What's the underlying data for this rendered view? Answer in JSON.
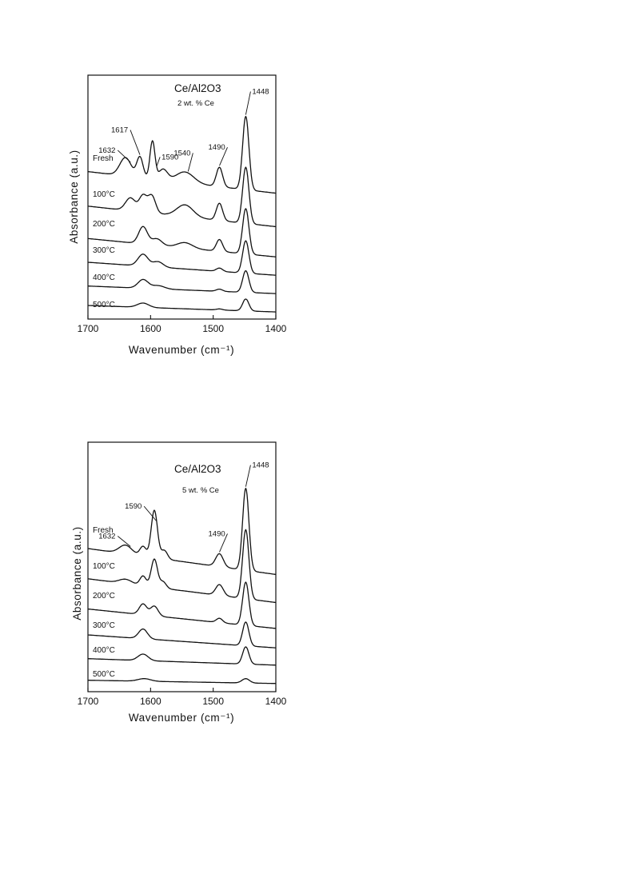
{
  "chart_data": [
    {
      "type": "line",
      "title": "Ce/Al2O3",
      "subtitle": "2 wt. % Ce",
      "xlabel": "Wavenumber (cm⁻¹)",
      "ylabel": "Absorbance (a.u.)",
      "xlim": [
        1700,
        1400
      ],
      "x_reversed": true,
      "xticks": [
        "1700",
        "1600",
        "1500",
        "1400"
      ],
      "grid": false,
      "peak_labels": [
        "1632",
        "1617",
        "1590",
        "1540",
        "1490",
        "1448"
      ],
      "peaks": [
        {
          "x": 1632,
          "label": "1632",
          "series": "Fresh"
        },
        {
          "x": 1617,
          "label": "1617",
          "series": "Fresh"
        },
        {
          "x": 1590,
          "label": "1590",
          "series": "Fresh"
        },
        {
          "x": 1540,
          "label": "1540",
          "series": "Fresh"
        },
        {
          "x": 1490,
          "label": "1490",
          "series": "Fresh"
        },
        {
          "x": 1448,
          "label": "1448",
          "series": "Fresh"
        }
      ],
      "series": [
        {
          "name": "Fresh",
          "offset": 7.2,
          "baseline_start": 0.0,
          "baseline_end": -1.0,
          "bands": [
            [
              1640,
              0.85,
              9
            ],
            [
              1617,
              0.95,
              5
            ],
            [
              1597,
              1.75,
              4
            ],
            [
              1580,
              0.5,
              7
            ],
            [
              1545,
              0.5,
              14
            ],
            [
              1490,
              0.9,
              5
            ],
            [
              1448,
              3.4,
              5
            ]
          ]
        },
        {
          "name": "100°C",
          "offset": 5.6,
          "baseline_start": 0.0,
          "baseline_end": -0.95,
          "bands": [
            [
              1632,
              0.6,
              8
            ],
            [
              1612,
              0.75,
              6
            ],
            [
              1598,
              0.8,
              6
            ],
            [
              1545,
              0.55,
              13
            ],
            [
              1490,
              0.8,
              5
            ],
            [
              1448,
              2.6,
              5
            ]
          ]
        },
        {
          "name": "200°C",
          "offset": 4.1,
          "baseline_start": 0.0,
          "baseline_end": -0.85,
          "bands": [
            [
              1612,
              0.8,
              7
            ],
            [
              1590,
              0.3,
              8
            ],
            [
              1545,
              0.25,
              12
            ],
            [
              1490,
              0.55,
              5
            ],
            [
              1448,
              2.1,
              5
            ]
          ]
        },
        {
          "name": "300°C",
          "offset": 3.0,
          "baseline_start": 0.0,
          "baseline_end": -0.6,
          "bands": [
            [
              1612,
              0.55,
              8
            ],
            [
              1588,
              0.25,
              8
            ],
            [
              1490,
              0.15,
              5
            ],
            [
              1448,
              1.5,
              5
            ]
          ]
        },
        {
          "name": "400°C",
          "offset": 1.9,
          "baseline_start": 0.0,
          "baseline_end": -0.35,
          "bands": [
            [
              1612,
              0.4,
              8
            ],
            [
              1588,
              0.15,
              10
            ],
            [
              1490,
              0.1,
              5
            ],
            [
              1448,
              1.0,
              5
            ]
          ]
        },
        {
          "name": "500°C",
          "offset": 1.0,
          "baseline_start": 0.0,
          "baseline_end": -0.3,
          "bands": [
            [
              1612,
              0.2,
              9
            ],
            [
              1490,
              0.05,
              5
            ],
            [
              1448,
              0.55,
              5
            ]
          ]
        }
      ]
    },
    {
      "type": "line",
      "title": "Ce/Al2O3",
      "subtitle": "5 wt. % Ce",
      "xlabel": "Wavenumber (cm⁻¹)",
      "ylabel": "Absorbance (a.u.)",
      "xlim": [
        1700,
        1400
      ],
      "x_reversed": true,
      "xticks": [
        "1700",
        "1600",
        "1500",
        "1400"
      ],
      "grid": false,
      "peak_labels": [
        "1632",
        "1590",
        "1490",
        "1448"
      ],
      "peaks": [
        {
          "x": 1632,
          "label": "1632",
          "series": "Fresh"
        },
        {
          "x": 1590,
          "label": "1590",
          "series": "Fresh"
        },
        {
          "x": 1490,
          "label": "1490",
          "series": "Fresh"
        },
        {
          "x": 1448,
          "label": "1448",
          "series": "Fresh"
        }
      ],
      "series": [
        {
          "name": "Fresh",
          "offset": 7.0,
          "baseline_start": 0.0,
          "baseline_end": -1.2,
          "bands": [
            [
              1640,
              0.4,
              10
            ],
            [
              1612,
              0.45,
              5
            ],
            [
              1594,
              2.2,
              5
            ],
            [
              1578,
              0.4,
              5
            ],
            [
              1490,
              0.6,
              6
            ],
            [
              1448,
              3.8,
              5
            ]
          ]
        },
        {
          "name": "100°C",
          "offset": 5.6,
          "baseline_start": 0.0,
          "baseline_end": -1.1,
          "bands": [
            [
              1640,
              0.2,
              10
            ],
            [
              1612,
              0.45,
              5
            ],
            [
              1594,
              1.3,
              5
            ],
            [
              1580,
              0.3,
              5
            ],
            [
              1490,
              0.5,
              6
            ],
            [
              1448,
              3.2,
              5
            ]
          ]
        },
        {
          "name": "200°C",
          "offset": 4.2,
          "baseline_start": 0.0,
          "baseline_end": -0.9,
          "bands": [
            [
              1612,
              0.5,
              6
            ],
            [
              1594,
              0.45,
              6
            ],
            [
              1490,
              0.2,
              5
            ],
            [
              1448,
              2.0,
              5
            ]
          ]
        },
        {
          "name": "300°C",
          "offset": 3.0,
          "baseline_start": 0.0,
          "baseline_end": -0.6,
          "bands": [
            [
              1612,
              0.45,
              7
            ],
            [
              1448,
              1.1,
              5
            ]
          ]
        },
        {
          "name": "400°C",
          "offset": 1.9,
          "baseline_start": 0.0,
          "baseline_end": -0.3,
          "bands": [
            [
              1612,
              0.3,
              8
            ],
            [
              1448,
              0.8,
              5
            ]
          ]
        },
        {
          "name": "500°C",
          "offset": 0.9,
          "baseline_start": 0.0,
          "baseline_end": -0.15,
          "bands": [
            [
              1610,
              0.12,
              10
            ],
            [
              1448,
              0.2,
              6
            ]
          ]
        }
      ]
    }
  ]
}
